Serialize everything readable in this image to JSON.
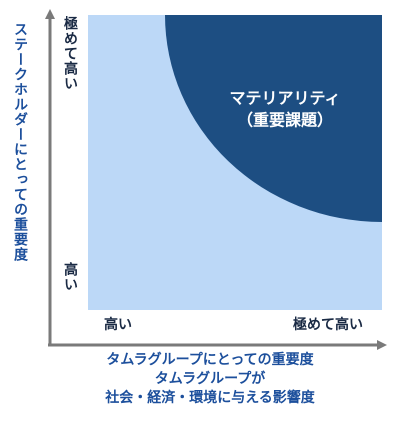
{
  "matrix": {
    "region": {
      "title": "マテリアリティ",
      "subtitle": "（重要課題）"
    }
  },
  "y_axis": {
    "label": "ステークホルダーにとっての重要度",
    "very_high": "極めて高い",
    "high": "高い"
  },
  "x_axis": {
    "high": "高い",
    "very_high": "極めて高い",
    "labels": [
      "タムラグループにとっての重要度",
      "タムラグループが",
      "社会・経済・環境に与える影響度"
    ]
  }
}
